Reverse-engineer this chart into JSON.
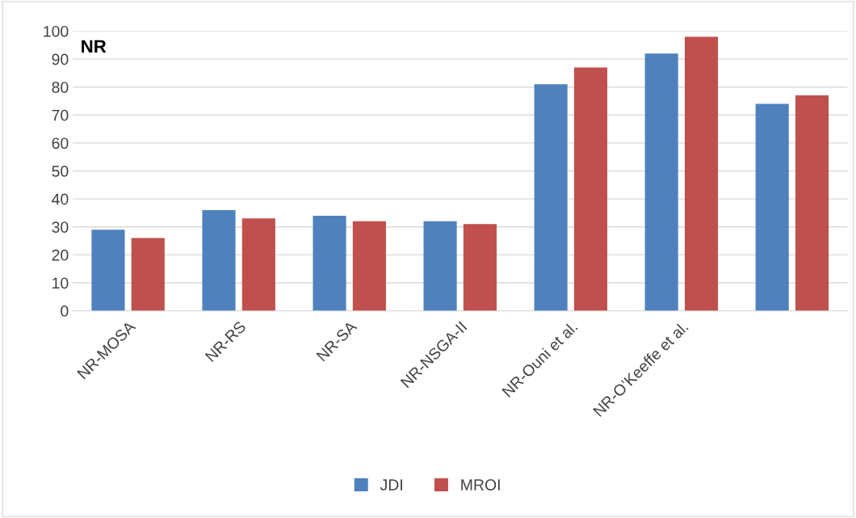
{
  "chart_data": {
    "type": "bar",
    "title": "NR",
    "categories": [
      "NR-MOSA",
      "NR-RS",
      "NR-SA",
      "NR-NSGA-II",
      "NR-Ouni et al.",
      "NR-O’Keeffe et al.",
      null
    ],
    "series": [
      {
        "name": "JDI",
        "color": "#4f81bd",
        "values": [
          29,
          36,
          34,
          32,
          81,
          92,
          74
        ]
      },
      {
        "name": "MROI",
        "color": "#c0504d",
        "values": [
          26,
          33,
          32,
          31,
          87,
          98,
          77
        ]
      }
    ],
    "ylim": [
      0,
      100
    ],
    "yticks": [
      0,
      10,
      20,
      30,
      40,
      50,
      60,
      70,
      80,
      90,
      100
    ],
    "grid": "y",
    "legend": "bottom"
  }
}
